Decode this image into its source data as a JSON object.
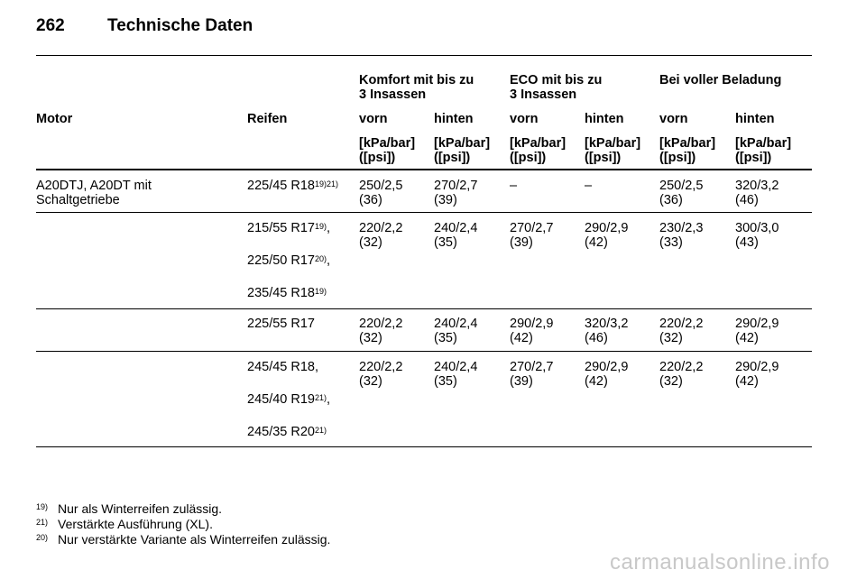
{
  "page": {
    "number": "262",
    "title": "Technische Daten"
  },
  "table": {
    "group_headers": {
      "komfort": [
        "Komfort mit bis zu",
        "3 Insassen"
      ],
      "eco": [
        "ECO mit bis zu",
        "3 Insassen"
      ],
      "full": [
        "Bei voller Beladung"
      ]
    },
    "col_motor": "Motor",
    "col_reifen": "Reifen",
    "col_vorn": "vorn",
    "col_hinten": "hinten",
    "unit": [
      "[kPa/bar]",
      "([psi])"
    ],
    "motor": [
      "A20DTJ, A20DT mit",
      "Schaltgetriebe"
    ],
    "rows": [
      {
        "tires": [
          {
            "text": "225/45 R18",
            "sup": "19)21)"
          }
        ],
        "values": [
          [
            "250/2,5",
            "(36)"
          ],
          [
            "270/2,7",
            "(39)"
          ],
          [
            "–",
            ""
          ],
          [
            "–",
            ""
          ],
          [
            "250/2,5",
            "(36)"
          ],
          [
            "320/3,2",
            "(46)"
          ]
        ]
      },
      {
        "tires": [
          {
            "text": "215/55 R17",
            "sup": "19)",
            "suffix": ","
          },
          {
            "text": "225/50 R17",
            "sup": "20)",
            "suffix": ","
          },
          {
            "text": "235/45 R18",
            "sup": "19)"
          }
        ],
        "values": [
          [
            "220/2,2",
            "(32)"
          ],
          [
            "240/2,4",
            "(35)"
          ],
          [
            "270/2,7",
            "(39)"
          ],
          [
            "290/2,9",
            "(42)"
          ],
          [
            "230/2,3",
            "(33)"
          ],
          [
            "300/3,0",
            "(43)"
          ]
        ]
      },
      {
        "tires": [
          {
            "text": "225/55 R17"
          }
        ],
        "values": [
          [
            "220/2,2",
            "(32)"
          ],
          [
            "240/2,4",
            "(35)"
          ],
          [
            "290/2,9",
            "(42)"
          ],
          [
            "320/3,2",
            "(46)"
          ],
          [
            "220/2,2",
            "(32)"
          ],
          [
            "290/2,9",
            "(42)"
          ]
        ]
      },
      {
        "tires": [
          {
            "text": "245/45 R18,",
            "sup": ""
          },
          {
            "text": "245/40 R19",
            "sup": "21)",
            "suffix": ","
          },
          {
            "text": "245/35 R20",
            "sup": "21)"
          }
        ],
        "values": [
          [
            "220/2,2",
            "(32)"
          ],
          [
            "240/2,4",
            "(35)"
          ],
          [
            "270/2,7",
            "(39)"
          ],
          [
            "290/2,9",
            "(42)"
          ],
          [
            "220/2,2",
            "(32)"
          ],
          [
            "290/2,9",
            "(42)"
          ]
        ]
      }
    ]
  },
  "footnotes": [
    {
      "mark": "19)",
      "text": "Nur als Winterreifen zulässig."
    },
    {
      "mark": "21)",
      "text": "Verstärkte Ausführung (XL)."
    },
    {
      "mark": "20)",
      "text": "Nur verstärkte Variante als Winterreifen zulässig."
    }
  ],
  "watermark": "carmanualsonline.info"
}
